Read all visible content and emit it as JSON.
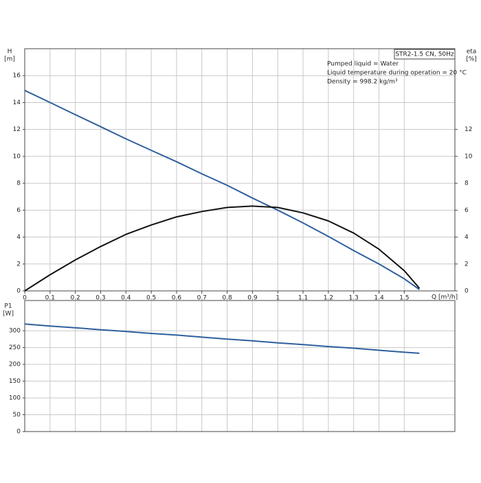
{
  "chart_data": [
    {
      "type": "line",
      "y_label": "H",
      "y_unit": "[m]",
      "y2_label": "eta",
      "y2_unit": "[%]",
      "x_label": "Q [m³/h]",
      "legend_title": "STR2-1.5 CN, 50Hz",
      "notes": [
        "Pumped liquid = Water",
        "Liquid temperature during operation = 20 °C",
        "Density = 998.2 kg/m³"
      ],
      "x": [
        0,
        0.1,
        0.2,
        0.3,
        0.4,
        0.5,
        0.6,
        0.7,
        0.8,
        0.9,
        1.0,
        1.1,
        1.2,
        1.3,
        1.4,
        1.5,
        1.56
      ],
      "series": [
        {
          "name": "H",
          "color": "#2e5f9e",
          "axis": "y",
          "values": [
            14.9,
            14.0,
            13.1,
            12.2,
            11.3,
            10.45,
            9.6,
            8.7,
            7.85,
            6.9,
            6.0,
            5.05,
            4.05,
            3.0,
            2.0,
            0.9,
            0.1
          ]
        },
        {
          "name": "eta",
          "color": "#111111",
          "axis": "y2",
          "values": [
            0,
            1.2,
            2.3,
            3.3,
            4.2,
            4.9,
            5.5,
            5.9,
            6.2,
            6.3,
            6.2,
            5.8,
            5.2,
            4.3,
            3.1,
            1.5,
            0.2
          ]
        }
      ],
      "xlim": [
        0,
        1.7
      ],
      "xticks": [
        0,
        0.1,
        0.2,
        0.3,
        0.4,
        0.5,
        0.6,
        0.7,
        0.8,
        0.9,
        {
          "value": 1.0,
          "label": "1"
        },
        1.1,
        1.2,
        1.3,
        1.4,
        1.5
      ],
      "ylim": [
        0,
        18
      ],
      "yticks": [
        0,
        2,
        4,
        6,
        8,
        10,
        12,
        14,
        16
      ],
      "y2lim": [
        0,
        18
      ],
      "y2ticks": [
        0,
        2,
        4,
        6,
        8,
        10,
        12
      ],
      "grid": true
    },
    {
      "type": "line",
      "y_label": "P1",
      "y_unit": "[W]",
      "x": [
        0,
        0.1,
        0.2,
        0.3,
        0.4,
        0.5,
        0.6,
        0.7,
        0.8,
        0.9,
        1.0,
        1.1,
        1.2,
        1.3,
        1.4,
        1.5,
        1.56
      ],
      "series": [
        {
          "name": "P1",
          "color": "#2e5f9e",
          "values": [
            320,
            314,
            309,
            303,
            298,
            292,
            287,
            281,
            275,
            270,
            264,
            259,
            253,
            248,
            242,
            236,
            233
          ]
        }
      ],
      "xlim": [
        0,
        1.7
      ],
      "ylim": [
        0,
        390
      ],
      "yticks": [
        0,
        50,
        100,
        150,
        200,
        250,
        300
      ],
      "grid": true
    }
  ]
}
